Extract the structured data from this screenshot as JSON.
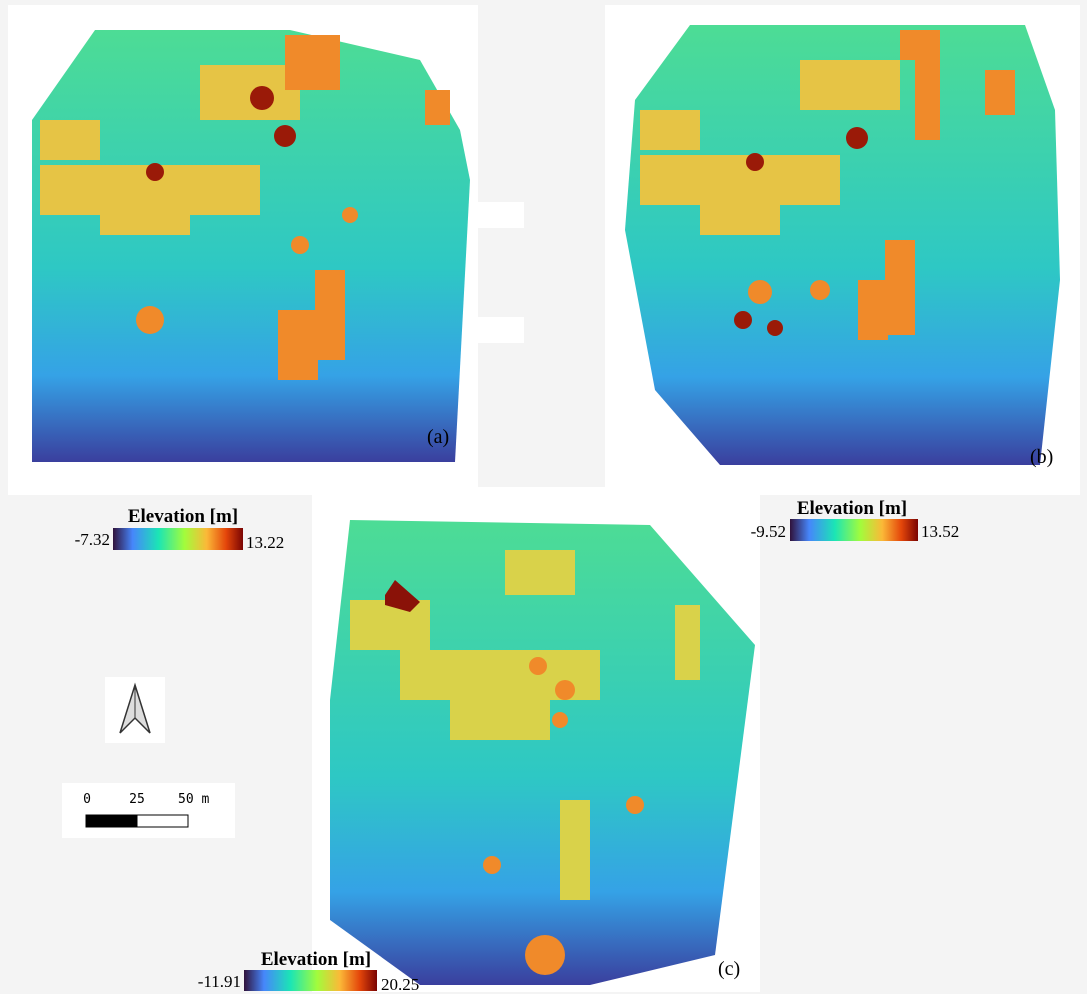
{
  "panels": [
    {
      "label": "(a)",
      "legend": {
        "title": "Elevation [m]",
        "min": "-7.32",
        "max": "13.22"
      }
    },
    {
      "label": "(b)",
      "legend": {
        "title": "Elevation [m]",
        "min": "-9.52",
        "max": "13.52"
      }
    },
    {
      "label": "(c)",
      "legend": {
        "title": "Elevation [m]",
        "min": "-11.91",
        "max": "20.25"
      }
    }
  ],
  "scale_bar": {
    "ticks": [
      "0",
      "25",
      "50 m"
    ]
  }
}
